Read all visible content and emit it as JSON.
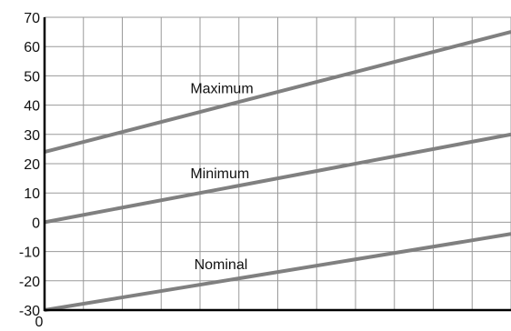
{
  "chart_data": {
    "type": "line",
    "title": "",
    "xlabel": "",
    "ylabel": "",
    "xlim": [
      0,
      12
    ],
    "ylim": [
      -30,
      70
    ],
    "grid": true,
    "x_ticks": [
      {
        "value": 0,
        "label": "0"
      }
    ],
    "y_ticks": [
      {
        "value": 70,
        "label": "70"
      },
      {
        "value": 60,
        "label": "60"
      },
      {
        "value": 50,
        "label": "50"
      },
      {
        "value": 40,
        "label": "40"
      },
      {
        "value": 30,
        "label": "30"
      },
      {
        "value": 20,
        "label": "20"
      },
      {
        "value": 10,
        "label": "10"
      },
      {
        "value": 0,
        "label": "0"
      },
      {
        "value": -10,
        "label": "-10"
      },
      {
        "value": -20,
        "label": "-20"
      },
      {
        "value": -30,
        "label": "-30"
      }
    ],
    "series": [
      {
        "name": "Maximum",
        "x": [
          0,
          12
        ],
        "y": [
          24,
          65
        ]
      },
      {
        "name": "Minimum",
        "x": [
          0,
          12
        ],
        "y": [
          0,
          30
        ]
      },
      {
        "name": "Nominal",
        "x": [
          0,
          12
        ],
        "y": [
          -30,
          -4
        ]
      }
    ],
    "annotations": [
      {
        "text": "Maximum",
        "x": 3.75,
        "y": 44
      },
      {
        "text": "Minimum",
        "x": 3.75,
        "y": 15
      },
      {
        "text": "Nominal",
        "x": 3.85,
        "y": -16
      }
    ],
    "line_color": "#808080",
    "grid_color": "#9a9a9a",
    "axis_color": "#000000"
  }
}
